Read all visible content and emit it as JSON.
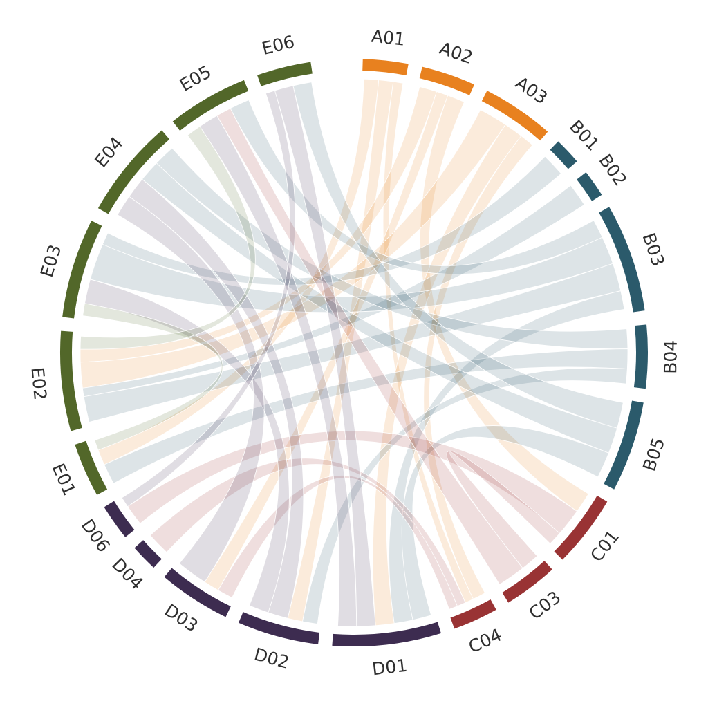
{
  "chart_data": {
    "type": "chord",
    "groups": [
      {
        "name": "A",
        "color": "#e8811f",
        "segments": [
          "A01",
          "A02",
          "A03"
        ]
      },
      {
        "name": "B",
        "color": "#2b5a6b",
        "segments": [
          "B01",
          "B02",
          "B03",
          "B04",
          "B05"
        ]
      },
      {
        "name": "C",
        "color": "#993334",
        "segments": [
          "C01",
          "C03",
          "C04"
        ]
      },
      {
        "name": "D",
        "color": "#3d2c50",
        "segments": [
          "D01",
          "D02",
          "D03",
          "D04",
          "D06"
        ]
      },
      {
        "name": "E",
        "color": "#526729",
        "segments": [
          "E01",
          "E02",
          "E03",
          "E04",
          "E05",
          "E06"
        ]
      }
    ],
    "segments": [
      {
        "label": "A01",
        "group": "A",
        "size": 5
      },
      {
        "label": "A02",
        "group": "A",
        "size": 6
      },
      {
        "label": "A03",
        "group": "A",
        "size": 8
      },
      {
        "label": "B01",
        "group": "B",
        "size": 3
      },
      {
        "label": "B02",
        "group": "B",
        "size": 3
      },
      {
        "label": "B03",
        "group": "B",
        "size": 12
      },
      {
        "label": "B04",
        "group": "B",
        "size": 7
      },
      {
        "label": "B05",
        "group": "B",
        "size": 10
      },
      {
        "label": "C01",
        "group": "C",
        "size": 8
      },
      {
        "label": "C03",
        "group": "C",
        "size": 6
      },
      {
        "label": "C04",
        "group": "C",
        "size": 5
      },
      {
        "label": "D01",
        "group": "D",
        "size": 12
      },
      {
        "label": "D02",
        "group": "D",
        "size": 9
      },
      {
        "label": "D03",
        "group": "D",
        "size": 8
      },
      {
        "label": "D04",
        "group": "D",
        "size": 3
      },
      {
        "label": "D06",
        "group": "D",
        "size": 4
      },
      {
        "label": "E01",
        "group": "E",
        "size": 6
      },
      {
        "label": "E02",
        "group": "E",
        "size": 11
      },
      {
        "label": "E03",
        "group": "E",
        "size": 11
      },
      {
        "label": "E04",
        "group": "E",
        "size": 11
      },
      {
        "label": "E05",
        "group": "E",
        "size": 9
      },
      {
        "label": "E06",
        "group": "E",
        "size": 6
      }
    ],
    "links": [
      {
        "source": "A01",
        "target": "D02",
        "value": 1.5
      },
      {
        "source": "A01",
        "target": "E01",
        "value": 1.5
      },
      {
        "source": "A01",
        "target": "C04",
        "value": 1
      },
      {
        "source": "A02",
        "target": "C01",
        "value": 1.5
      },
      {
        "source": "A02",
        "target": "E02",
        "value": 1.5
      },
      {
        "source": "A02",
        "target": "D03",
        "value": 1
      },
      {
        "source": "A03",
        "target": "E02",
        "value": 3
      },
      {
        "source": "A03",
        "target": "D01",
        "value": 2
      },
      {
        "source": "A03",
        "target": "C04",
        "value": 1.5
      },
      {
        "source": "B01",
        "target": "E03",
        "value": 1
      },
      {
        "source": "B02",
        "target": "E02",
        "value": 1
      },
      {
        "source": "B03",
        "target": "E03",
        "value": 3
      },
      {
        "source": "B03",
        "target": "D01",
        "value": 2
      },
      {
        "source": "B03",
        "target": "E05",
        "value": 2
      },
      {
        "source": "B03",
        "target": "E02",
        "value": 3
      },
      {
        "source": "B04",
        "target": "E04",
        "value": 2
      },
      {
        "source": "B04",
        "target": "E01",
        "value": 2
      },
      {
        "source": "B04",
        "target": "D02",
        "value": 1.5
      },
      {
        "source": "B05",
        "target": "E04",
        "value": 2
      },
      {
        "source": "B05",
        "target": "D01",
        "value": 2
      },
      {
        "source": "B05",
        "target": "E06",
        "value": 2
      },
      {
        "source": "C01",
        "target": "D06",
        "value": 2
      },
      {
        "source": "C01",
        "target": "C03",
        "value": 1
      },
      {
        "source": "C03",
        "target": "E05",
        "value": 1.5
      },
      {
        "source": "C04",
        "target": "D04",
        "value": 1
      },
      {
        "source": "C04",
        "target": "D03",
        "value": 1
      },
      {
        "source": "D01",
        "target": "E05",
        "value": 2
      },
      {
        "source": "D01",
        "target": "E06",
        "value": 2
      },
      {
        "source": "D02",
        "target": "E03",
        "value": 2
      },
      {
        "source": "D02",
        "target": "E04",
        "value": 2
      },
      {
        "source": "D03",
        "target": "E04",
        "value": 2
      },
      {
        "source": "D06",
        "target": "E06",
        "value": 1
      },
      {
        "source": "E01",
        "target": "E03",
        "value": 1
      },
      {
        "source": "E02",
        "target": "E05",
        "value": 1.5
      }
    ]
  }
}
